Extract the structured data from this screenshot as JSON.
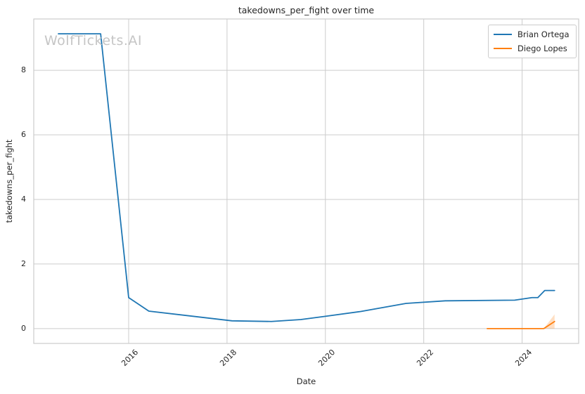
{
  "watermark": "WolfTickets.AI",
  "colors": {
    "series_blue": "#1f77b4",
    "series_orange": "#ff7f0e",
    "band_fill": "rgba(255,127,14,0.25)",
    "grid": "#cccccc",
    "spine": "#cccccc",
    "text": "#262626",
    "watermark": "#c5c5c5"
  },
  "chart_data": {
    "type": "line",
    "title": "takedowns_per_fight over time",
    "xlabel": "Date",
    "ylabel": "takedowns_per_fight",
    "xlim": [
      2014.07,
      2025.15
    ],
    "ylim": [
      -0.46,
      9.59
    ],
    "x_ticks": [
      2016,
      2018,
      2020,
      2022,
      2024
    ],
    "y_ticks": [
      0,
      2,
      4,
      6,
      8
    ],
    "grid": true,
    "legend_position": "upper right",
    "series": [
      {
        "name": "Brian Ortega",
        "color": "#1f77b4",
        "x": [
          2014.57,
          2015.43,
          2016.0,
          2016.41,
          2018.1,
          2018.9,
          2019.5,
          2020.0,
          2020.72,
          2021.64,
          2022.44,
          2023.85,
          2024.2,
          2024.32,
          2024.46,
          2024.66
        ],
        "y": [
          9.13,
          9.13,
          0.96,
          0.54,
          0.24,
          0.22,
          0.28,
          0.38,
          0.53,
          0.78,
          0.86,
          0.88,
          0.96,
          0.96,
          1.18,
          1.18
        ]
      },
      {
        "name": "Diego Lopes",
        "color": "#ff7f0e",
        "x": [
          2023.29,
          2023.7,
          2024.1,
          2024.44,
          2024.66
        ],
        "y": [
          0.0,
          0.0,
          0.0,
          0.0,
          0.22
        ],
        "band": {
          "x": [
            2024.44,
            2024.66
          ],
          "lower": [
            0.0,
            0.0
          ],
          "upper": [
            0.0,
            0.44
          ]
        }
      }
    ]
  }
}
